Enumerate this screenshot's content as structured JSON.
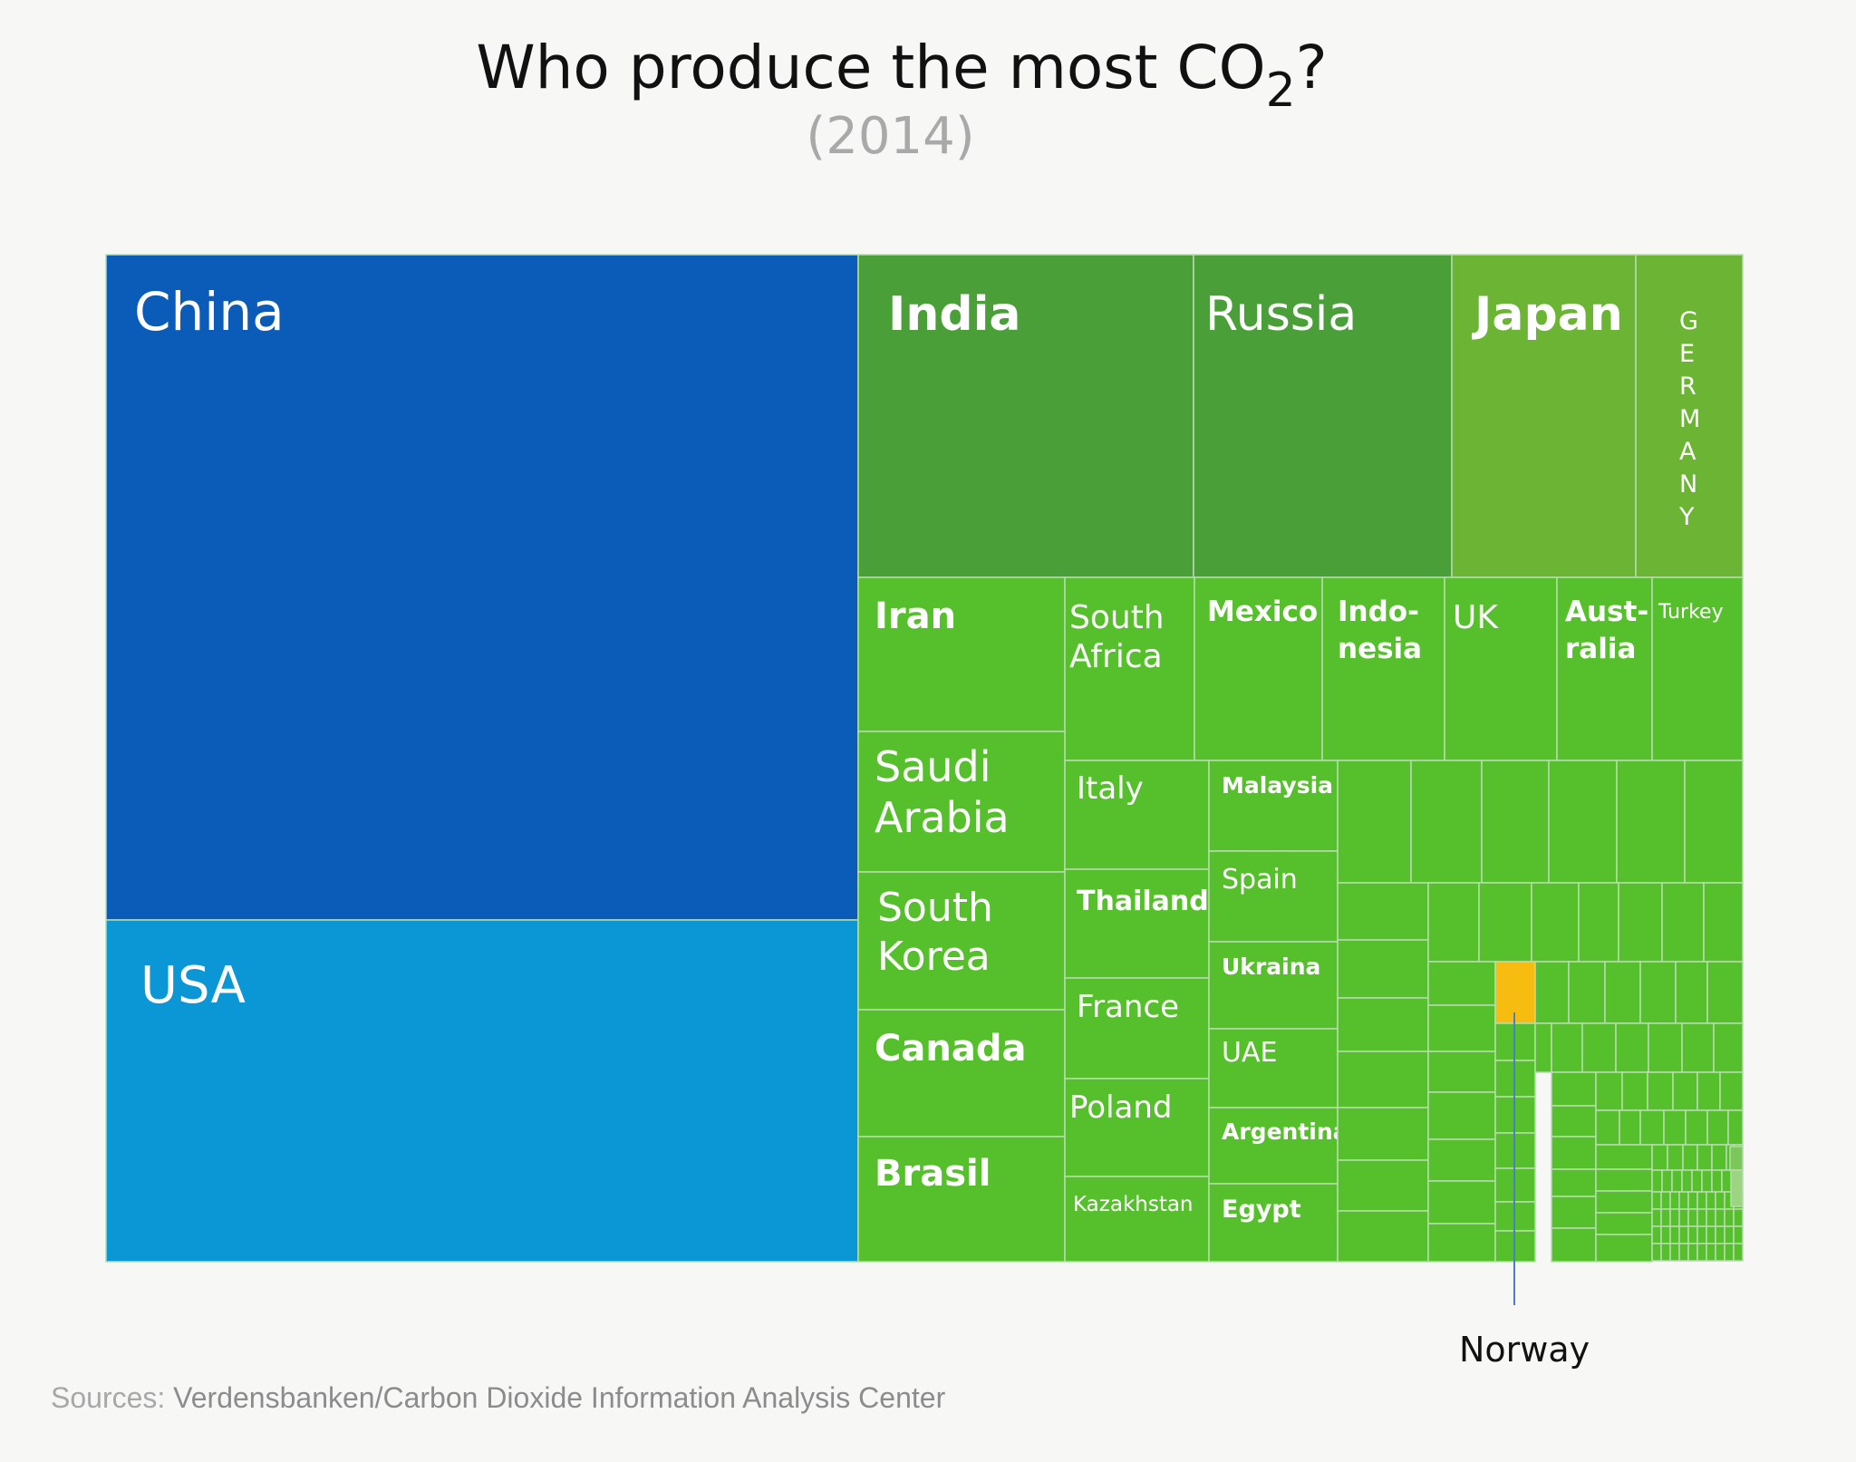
{
  "title": {
    "main": "Who produce the most CO",
    "subscript": "2",
    "end": "?",
    "subtitle": "(2014)"
  },
  "source": {
    "lead": "Sources:",
    "rest": "Verdensbanken/Carbon Dioxide Information Analysis Center"
  },
  "colors": {
    "china": "#0a5cb8",
    "usa": "#0b97d6",
    "top_green": "#4a9f38",
    "mid_green": "#6cb534",
    "green": "#56c02c",
    "highlight": "#f6bc0f",
    "border": "#b7dcae",
    "callout_line": "#4a7fc0"
  },
  "chart_data": {
    "type": "treemap",
    "title": "Who produce the most CO2?",
    "subtitle": "(2014)",
    "labeled_items": [
      {
        "label": "China",
        "color": "china"
      },
      {
        "label": "USA",
        "color": "usa"
      },
      {
        "label": "India",
        "color": "top_green"
      },
      {
        "label": "Russia",
        "color": "top_green"
      },
      {
        "label": "Japan",
        "color": "mid_green"
      },
      {
        "label": "GERMANY",
        "color": "mid_green"
      },
      {
        "label": "Iran"
      },
      {
        "label": "South Africa"
      },
      {
        "label": "Mexico"
      },
      {
        "label": "Indo-nesia"
      },
      {
        "label": "UK"
      },
      {
        "label": "Aust-ralia"
      },
      {
        "label": "Turkey"
      },
      {
        "label": "Saudi Arabia"
      },
      {
        "label": "South Korea"
      },
      {
        "label": "Canada"
      },
      {
        "label": "Brasil"
      },
      {
        "label": "Italy"
      },
      {
        "label": "Thailand"
      },
      {
        "label": "France"
      },
      {
        "label": "Poland"
      },
      {
        "label": "Kazakhstan"
      },
      {
        "label": "Malaysia"
      },
      {
        "label": "Spain"
      },
      {
        "label": "Ukraina"
      },
      {
        "label": "UAE"
      },
      {
        "label": "Argentina"
      },
      {
        "label": "Egypt"
      }
    ],
    "highlight": {
      "label": "Norway",
      "color": "highlight"
    }
  }
}
